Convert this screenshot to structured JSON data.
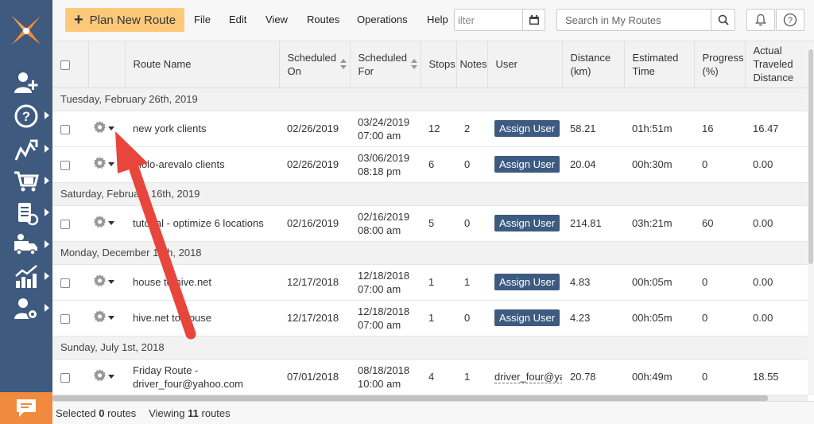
{
  "topbar": {
    "plan_button_label": "Plan New Route",
    "menu": [
      "File",
      "Edit",
      "View",
      "Routes",
      "Operations",
      "Help"
    ],
    "filter_value": "ilter",
    "search_placeholder": "Search in My Routes"
  },
  "sidebar": {
    "items": [
      {
        "icon": "add-user-icon"
      },
      {
        "icon": "help-icon"
      },
      {
        "icon": "routes-icon"
      },
      {
        "icon": "cart-icon"
      },
      {
        "icon": "address-book-icon"
      },
      {
        "icon": "vehicles-icon"
      },
      {
        "icon": "analytics-icon"
      },
      {
        "icon": "user-settings-icon"
      }
    ]
  },
  "table": {
    "headers": {
      "route_name": "Route Name",
      "scheduled_on": "Scheduled On",
      "scheduled_for": "Scheduled For",
      "stops": "Stops",
      "notes": "Notes",
      "user": "User",
      "distance": "Distance (km)",
      "estimated_time": "Estimated Time",
      "progress": "Progress (%)",
      "actual_distance": "Actual Traveled Distance"
    },
    "assign_label": "Assign User",
    "groups": [
      {
        "date": "Tuesday, February 26th, 2019",
        "routes": [
          {
            "name": "new york clients",
            "on": "02/26/2019",
            "for_date": "03/24/2019",
            "for_time": "07:00 am",
            "stops": "12",
            "notes": "2",
            "user": "",
            "distance": "58.21",
            "time": "01h:51m",
            "progress": "16",
            "actual": "16.47"
          },
          {
            "name": "molo-arevalo clients",
            "on": "02/26/2019",
            "for_date": "03/06/2019",
            "for_time": "08:18 pm",
            "stops": "6",
            "notes": "0",
            "user": "",
            "distance": "20.04",
            "time": "00h:30m",
            "progress": "0",
            "actual": "0.00"
          }
        ]
      },
      {
        "date": "Saturday, February 16th, 2019",
        "routes": [
          {
            "name": "tutorial - optimize 6 locations",
            "on": "02/16/2019",
            "for_date": "02/16/2019",
            "for_time": "08:00 am",
            "stops": "5",
            "notes": "0",
            "user": "",
            "distance": "214.81",
            "time": "03h:21m",
            "progress": "60",
            "actual": "0.00"
          }
        ]
      },
      {
        "date": "Monday, December 17th, 2018",
        "routes": [
          {
            "name": "house to hive.net",
            "on": "12/17/2018",
            "for_date": "12/18/2018",
            "for_time": "07:00 am",
            "stops": "1",
            "notes": "1",
            "user": "",
            "distance": "4.83",
            "time": "00h:05m",
            "progress": "0",
            "actual": "0.00"
          },
          {
            "name": "hive.net to house",
            "on": "12/17/2018",
            "for_date": "12/18/2018",
            "for_time": "07:00 am",
            "stops": "1",
            "notes": "0",
            "user": "",
            "distance": "4.23",
            "time": "00h:05m",
            "progress": "0",
            "actual": "0.00"
          }
        ]
      },
      {
        "date": "Sunday, July 1st, 2018",
        "routes": [
          {
            "name": "Friday Route - driver_four@yahoo.com",
            "on": "07/01/2018",
            "for_date": "08/18/2018",
            "for_time": "10:00 am",
            "stops": "4",
            "notes": "1",
            "user": "driver_four@yah",
            "distance": "20.78",
            "time": "00h:49m",
            "progress": "0",
            "actual": "18.55"
          }
        ]
      }
    ]
  },
  "footer": {
    "selected_label": "Selected",
    "selected_count": "0",
    "selected_unit": "routes",
    "viewing_label": "Viewing",
    "viewing_count": "11",
    "viewing_unit": "routes"
  },
  "colors": {
    "sidebar": "#3e5a7e",
    "plan_button": "#fcc97b",
    "assign_button": "#3d5a80",
    "chat_button": "#f08a3c",
    "arrow": "#e8453c"
  }
}
